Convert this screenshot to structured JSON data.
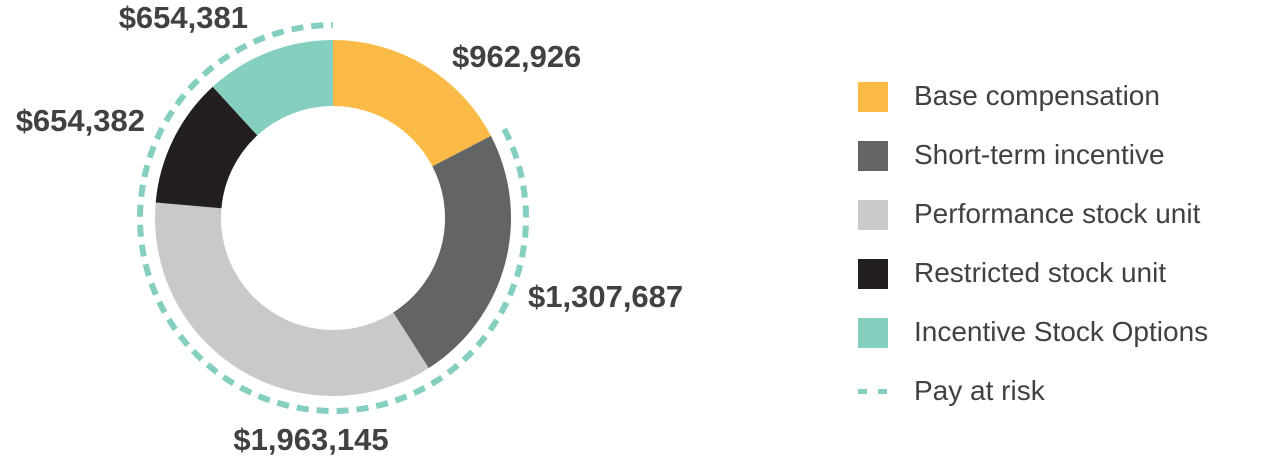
{
  "chart_data": {
    "type": "pie",
    "donut": true,
    "categories": [
      "Base compensation",
      "Short-term incentive",
      "Performance stock unit",
      "Restricted stock unit",
      "Incentive Stock Options"
    ],
    "values": [
      962926,
      1307687,
      1963145,
      654382,
      654381
    ],
    "data_labels": [
      "$962,926",
      "$1,307,687",
      "$1,963,145",
      "$654,382",
      "$654,381"
    ],
    "colors": [
      "#fbba45",
      "#636466",
      "#c8c9cb",
      "#231f20",
      "#84cfc0"
    ],
    "pay_at_risk": {
      "label": "Pay at risk",
      "color": "#84cfc0",
      "style": "dashed-ring",
      "categories": [
        "Short-term incentive",
        "Performance stock unit",
        "Restricted stock unit",
        "Incentive Stock Options"
      ]
    },
    "legend_placement": "right"
  }
}
